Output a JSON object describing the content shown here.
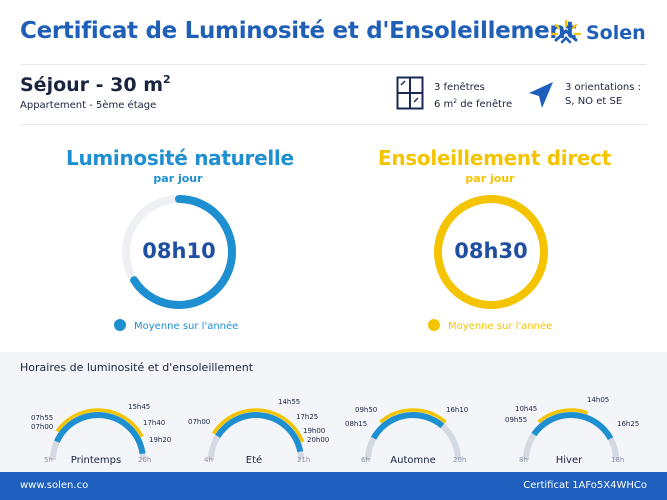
{
  "header": {
    "title": "Certificat de Luminosité et d'Ensoleillement",
    "brand": "Solen"
  },
  "room": {
    "name": "Séjour - 30 m",
    "area_exponent": "2",
    "subtitle": "Appartement - 5ème étage",
    "windows_line1": "3 fenêtres",
    "windows_line2_pre": "6 m",
    "windows_line2_exp": "2",
    "windows_line2_post": " de fenêtre",
    "orientation_line1": "3 orientations :",
    "orientation_line2": "S, NO et SE"
  },
  "metrics": {
    "luminosity": {
      "title": "Luminosité naturelle",
      "subtitle": "par jour",
      "value": "08h10",
      "fraction": 0.66,
      "legend": "Moyenne sur l'année",
      "color": "#1e8fd0"
    },
    "sunshine": {
      "title": "Ensoleillement direct",
      "subtitle": "par jour",
      "value": "08h30",
      "fraction": 1.0,
      "legend": "Moyenne sur l'année",
      "color": "#f5c400"
    }
  },
  "schedules": {
    "title": "Horaires de luminosité et d'ensoleillement",
    "luminosity_color": "#1e8fd0",
    "sunshine_color": "#f5c400",
    "track_color": "#d5d9e2",
    "seasons": [
      {
        "name": "Printemps",
        "axis_start": "5h",
        "axis_end": "20h",
        "axis_min": 5,
        "axis_max": 20,
        "luminosity": [
          7.0,
          19.33
        ],
        "sunshine": [
          7.92,
          17.67
        ],
        "labels": {
          "sun_start": "07h55",
          "lum_start": "07h00",
          "top": "15h45",
          "sun_end": "17h40",
          "lum_end": "19h20"
        }
      },
      {
        "name": "Eté",
        "axis_start": "4h",
        "axis_end": "21h",
        "axis_min": 4,
        "axis_max": 21,
        "luminosity": [
          7.0,
          20.0
        ],
        "sunshine": [
          7.0,
          19.0
        ],
        "labels": {
          "lum_start": "07h00",
          "top": "14h55",
          "mid_right": "17h25",
          "sun_end": "19h00",
          "lum_end": "20h00"
        }
      },
      {
        "name": "Automne",
        "axis_start": "6h",
        "axis_end": "20h",
        "axis_min": 6,
        "axis_max": 20,
        "luminosity": [
          8.25,
          16.17
        ],
        "sunshine": [
          9.83,
          16.17
        ],
        "labels": {
          "sun_start": "09h50",
          "lum_start": "08h15",
          "top": "16h10"
        }
      },
      {
        "name": "Hiver",
        "axis_start": "8h",
        "axis_end": "18h",
        "axis_min": 8,
        "axis_max": 18,
        "luminosity": [
          9.92,
          16.42
        ],
        "sunshine": [
          10.75,
          14.08
        ],
        "labels": {
          "sun_start": "10h45",
          "lum_start": "09h55",
          "top": "14h05",
          "lum_end": "16h25"
        }
      }
    ]
  },
  "footer": {
    "website": "www.solen.co",
    "certificate": "Certificat 1AFo5X4WHCo"
  }
}
